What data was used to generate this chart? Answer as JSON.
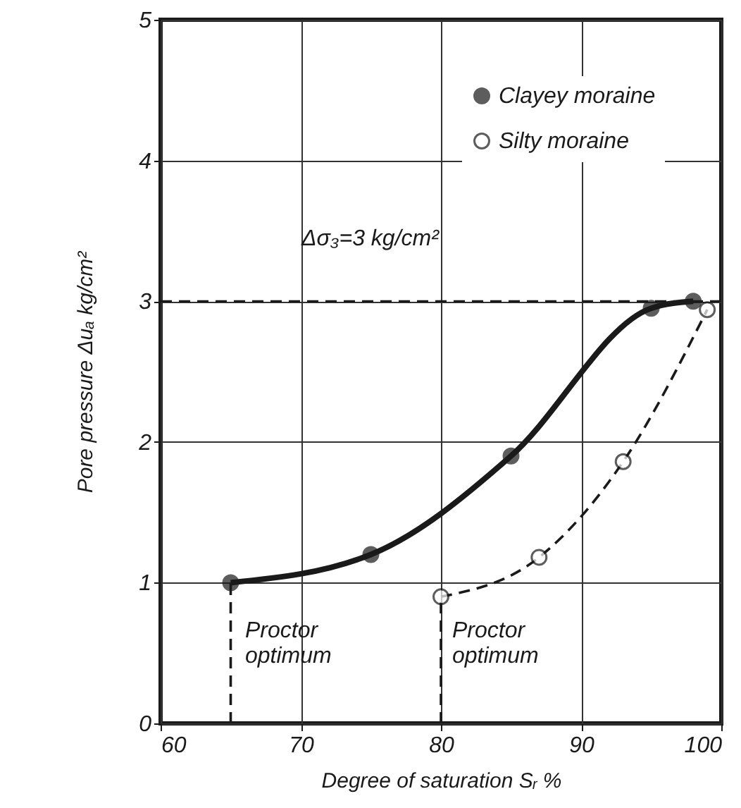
{
  "chart_data": {
    "type": "line",
    "xlabel": "Degree of saturation Sᵣ %",
    "ylabel": "Pore pressure Δuₐ kg/cm²",
    "series": [
      {
        "name": "Clayey moraine",
        "color": "#1a1a1a",
        "line_style": "solid",
        "x": [
          65,
          75,
          85,
          95,
          98
        ],
        "values": [
          1.0,
          1.2,
          1.9,
          2.95,
          3.0
        ]
      },
      {
        "name": "Silty moraine",
        "color": "#1a1a1a",
        "line_style": "dashed",
        "x": [
          80,
          87,
          93,
          99
        ],
        "values": [
          0.9,
          1.18,
          1.86,
          2.94
        ]
      },
      {
        "color": "#1a1a1a",
        "line_style": "dashed",
        "marker": "none",
        "x": [
          65,
          65
        ],
        "values": [
          0,
          1.0
        ]
      },
      {
        "color": "#1a1a1a",
        "line_style": "dashed",
        "marker": "none",
        "x": [
          80,
          80
        ],
        "values": [
          0,
          0.9
        ]
      }
    ],
    "marker": "circle",
    "xlim": [
      60,
      100
    ],
    "xticks": [
      60,
      70,
      80,
      90,
      100
    ],
    "ylim": [
      0,
      5
    ],
    "yticks": [
      0,
      1,
      2,
      3,
      4,
      5
    ],
    "grid": true,
    "legend": "top right",
    "ref_lines": [
      {
        "axis": "y",
        "value": 3,
        "line_style": "dashed",
        "color": "#1a1a1a"
      }
    ],
    "annotations": [
      "Δσ₃=3 kg/cm²",
      "Proctor optimum",
      "Proctor optimum"
    ]
  }
}
